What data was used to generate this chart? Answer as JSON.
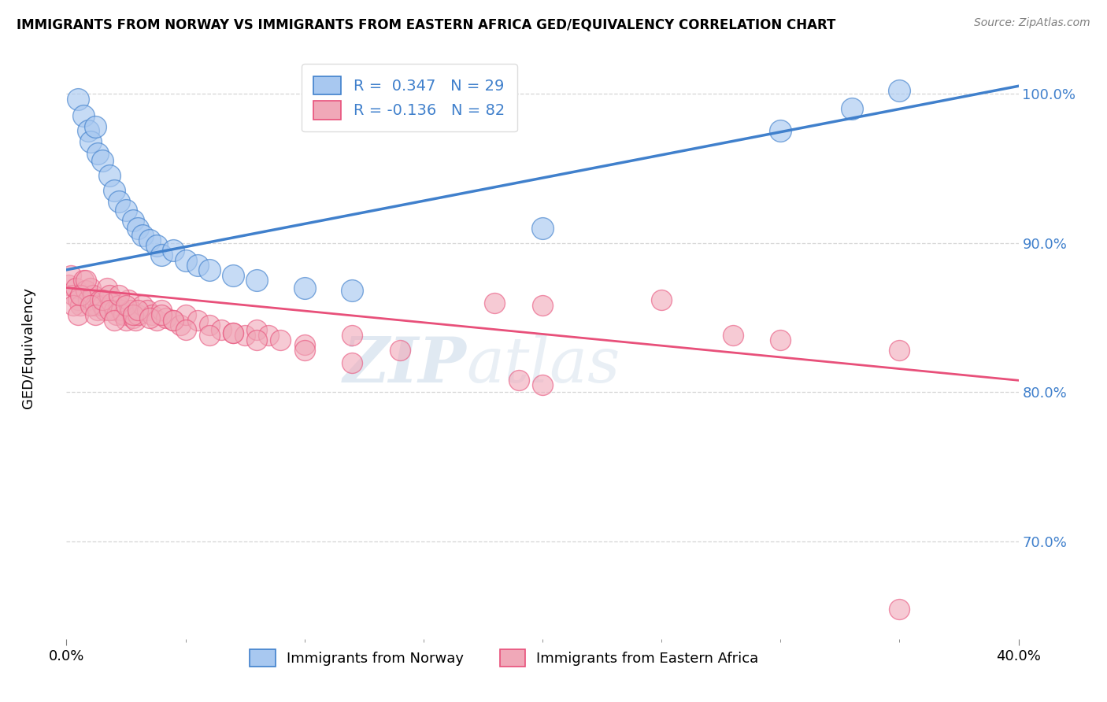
{
  "title": "IMMIGRANTS FROM NORWAY VS IMMIGRANTS FROM EASTERN AFRICA GED/EQUIVALENCY CORRELATION CHART",
  "source": "Source: ZipAtlas.com",
  "ylabel": "GED/Equivalency",
  "xlim": [
    0.0,
    0.4
  ],
  "ylim": [
    0.635,
    1.025
  ],
  "norway_R": 0.347,
  "norway_N": 29,
  "eastern_africa_R": -0.136,
  "eastern_africa_N": 82,
  "norway_color": "#a8c8f0",
  "eastern_africa_color": "#f0a8b8",
  "norway_line_color": "#4080cc",
  "eastern_africa_line_color": "#e8507a",
  "norway_scatter": [
    [
      0.005,
      0.996
    ],
    [
      0.007,
      0.985
    ],
    [
      0.009,
      0.975
    ],
    [
      0.01,
      0.968
    ],
    [
      0.012,
      0.978
    ],
    [
      0.013,
      0.96
    ],
    [
      0.015,
      0.955
    ],
    [
      0.018,
      0.945
    ],
    [
      0.02,
      0.935
    ],
    [
      0.022,
      0.928
    ],
    [
      0.025,
      0.922
    ],
    [
      0.028,
      0.915
    ],
    [
      0.03,
      0.91
    ],
    [
      0.032,
      0.905
    ],
    [
      0.035,
      0.902
    ],
    [
      0.038,
      0.898
    ],
    [
      0.04,
      0.892
    ],
    [
      0.045,
      0.895
    ],
    [
      0.05,
      0.888
    ],
    [
      0.055,
      0.885
    ],
    [
      0.06,
      0.882
    ],
    [
      0.07,
      0.878
    ],
    [
      0.08,
      0.875
    ],
    [
      0.1,
      0.87
    ],
    [
      0.12,
      0.868
    ],
    [
      0.2,
      0.91
    ],
    [
      0.3,
      0.975
    ],
    [
      0.33,
      0.99
    ],
    [
      0.35,
      1.002
    ]
  ],
  "eastern_africa_scatter": [
    [
      0.001,
      0.872
    ],
    [
      0.002,
      0.878
    ],
    [
      0.003,
      0.865
    ],
    [
      0.004,
      0.87
    ],
    [
      0.005,
      0.862
    ],
    [
      0.006,
      0.858
    ],
    [
      0.007,
      0.875
    ],
    [
      0.008,
      0.868
    ],
    [
      0.009,
      0.862
    ],
    [
      0.01,
      0.87
    ],
    [
      0.011,
      0.865
    ],
    [
      0.012,
      0.858
    ],
    [
      0.013,
      0.855
    ],
    [
      0.014,
      0.862
    ],
    [
      0.015,
      0.858
    ],
    [
      0.016,
      0.855
    ],
    [
      0.017,
      0.87
    ],
    [
      0.018,
      0.865
    ],
    [
      0.019,
      0.86
    ],
    [
      0.02,
      0.855
    ],
    [
      0.021,
      0.852
    ],
    [
      0.022,
      0.858
    ],
    [
      0.023,
      0.855
    ],
    [
      0.024,
      0.852
    ],
    [
      0.025,
      0.848
    ],
    [
      0.026,
      0.862
    ],
    [
      0.027,
      0.855
    ],
    [
      0.028,
      0.85
    ],
    [
      0.029,
      0.848
    ],
    [
      0.03,
      0.852
    ],
    [
      0.032,
      0.858
    ],
    [
      0.034,
      0.855
    ],
    [
      0.036,
      0.852
    ],
    [
      0.038,
      0.848
    ],
    [
      0.04,
      0.855
    ],
    [
      0.042,
      0.85
    ],
    [
      0.045,
      0.848
    ],
    [
      0.048,
      0.845
    ],
    [
      0.05,
      0.852
    ],
    [
      0.055,
      0.848
    ],
    [
      0.06,
      0.845
    ],
    [
      0.065,
      0.842
    ],
    [
      0.07,
      0.84
    ],
    [
      0.075,
      0.838
    ],
    [
      0.08,
      0.842
    ],
    [
      0.085,
      0.838
    ],
    [
      0.09,
      0.835
    ],
    [
      0.1,
      0.832
    ],
    [
      0.003,
      0.858
    ],
    [
      0.005,
      0.852
    ],
    [
      0.006,
      0.865
    ],
    [
      0.008,
      0.875
    ],
    [
      0.01,
      0.858
    ],
    [
      0.012,
      0.852
    ],
    [
      0.015,
      0.862
    ],
    [
      0.018,
      0.855
    ],
    [
      0.02,
      0.848
    ],
    [
      0.022,
      0.865
    ],
    [
      0.025,
      0.858
    ],
    [
      0.028,
      0.852
    ],
    [
      0.03,
      0.855
    ],
    [
      0.035,
      0.85
    ],
    [
      0.04,
      0.852
    ],
    [
      0.045,
      0.848
    ],
    [
      0.05,
      0.842
    ],
    [
      0.06,
      0.838
    ],
    [
      0.07,
      0.84
    ],
    [
      0.08,
      0.835
    ],
    [
      0.1,
      0.828
    ],
    [
      0.12,
      0.838
    ],
    [
      0.14,
      0.828
    ],
    [
      0.18,
      0.86
    ],
    [
      0.2,
      0.858
    ],
    [
      0.25,
      0.862
    ],
    [
      0.12,
      0.82
    ],
    [
      0.19,
      0.808
    ],
    [
      0.2,
      0.805
    ],
    [
      0.28,
      0.838
    ],
    [
      0.3,
      0.835
    ],
    [
      0.35,
      0.828
    ],
    [
      0.35,
      0.655
    ]
  ],
  "norway_line_x": [
    0.0,
    0.4
  ],
  "norway_line_y": [
    0.882,
    1.005
  ],
  "eastern_africa_line_x": [
    0.0,
    0.4
  ],
  "eastern_africa_line_y": [
    0.87,
    0.808
  ],
  "watermark_zip": "ZIP",
  "watermark_atlas": "atlas",
  "background_color": "#ffffff",
  "grid_color": "#cccccc",
  "ytick_values": [
    0.7,
    0.8,
    0.9,
    1.0
  ],
  "ytick_labels": [
    "70.0%",
    "80.0%",
    "90.0%",
    "100.0%"
  ],
  "xtick_values": [
    0.0,
    0.4
  ],
  "xtick_labels": [
    "0.0%",
    "40.0%"
  ]
}
